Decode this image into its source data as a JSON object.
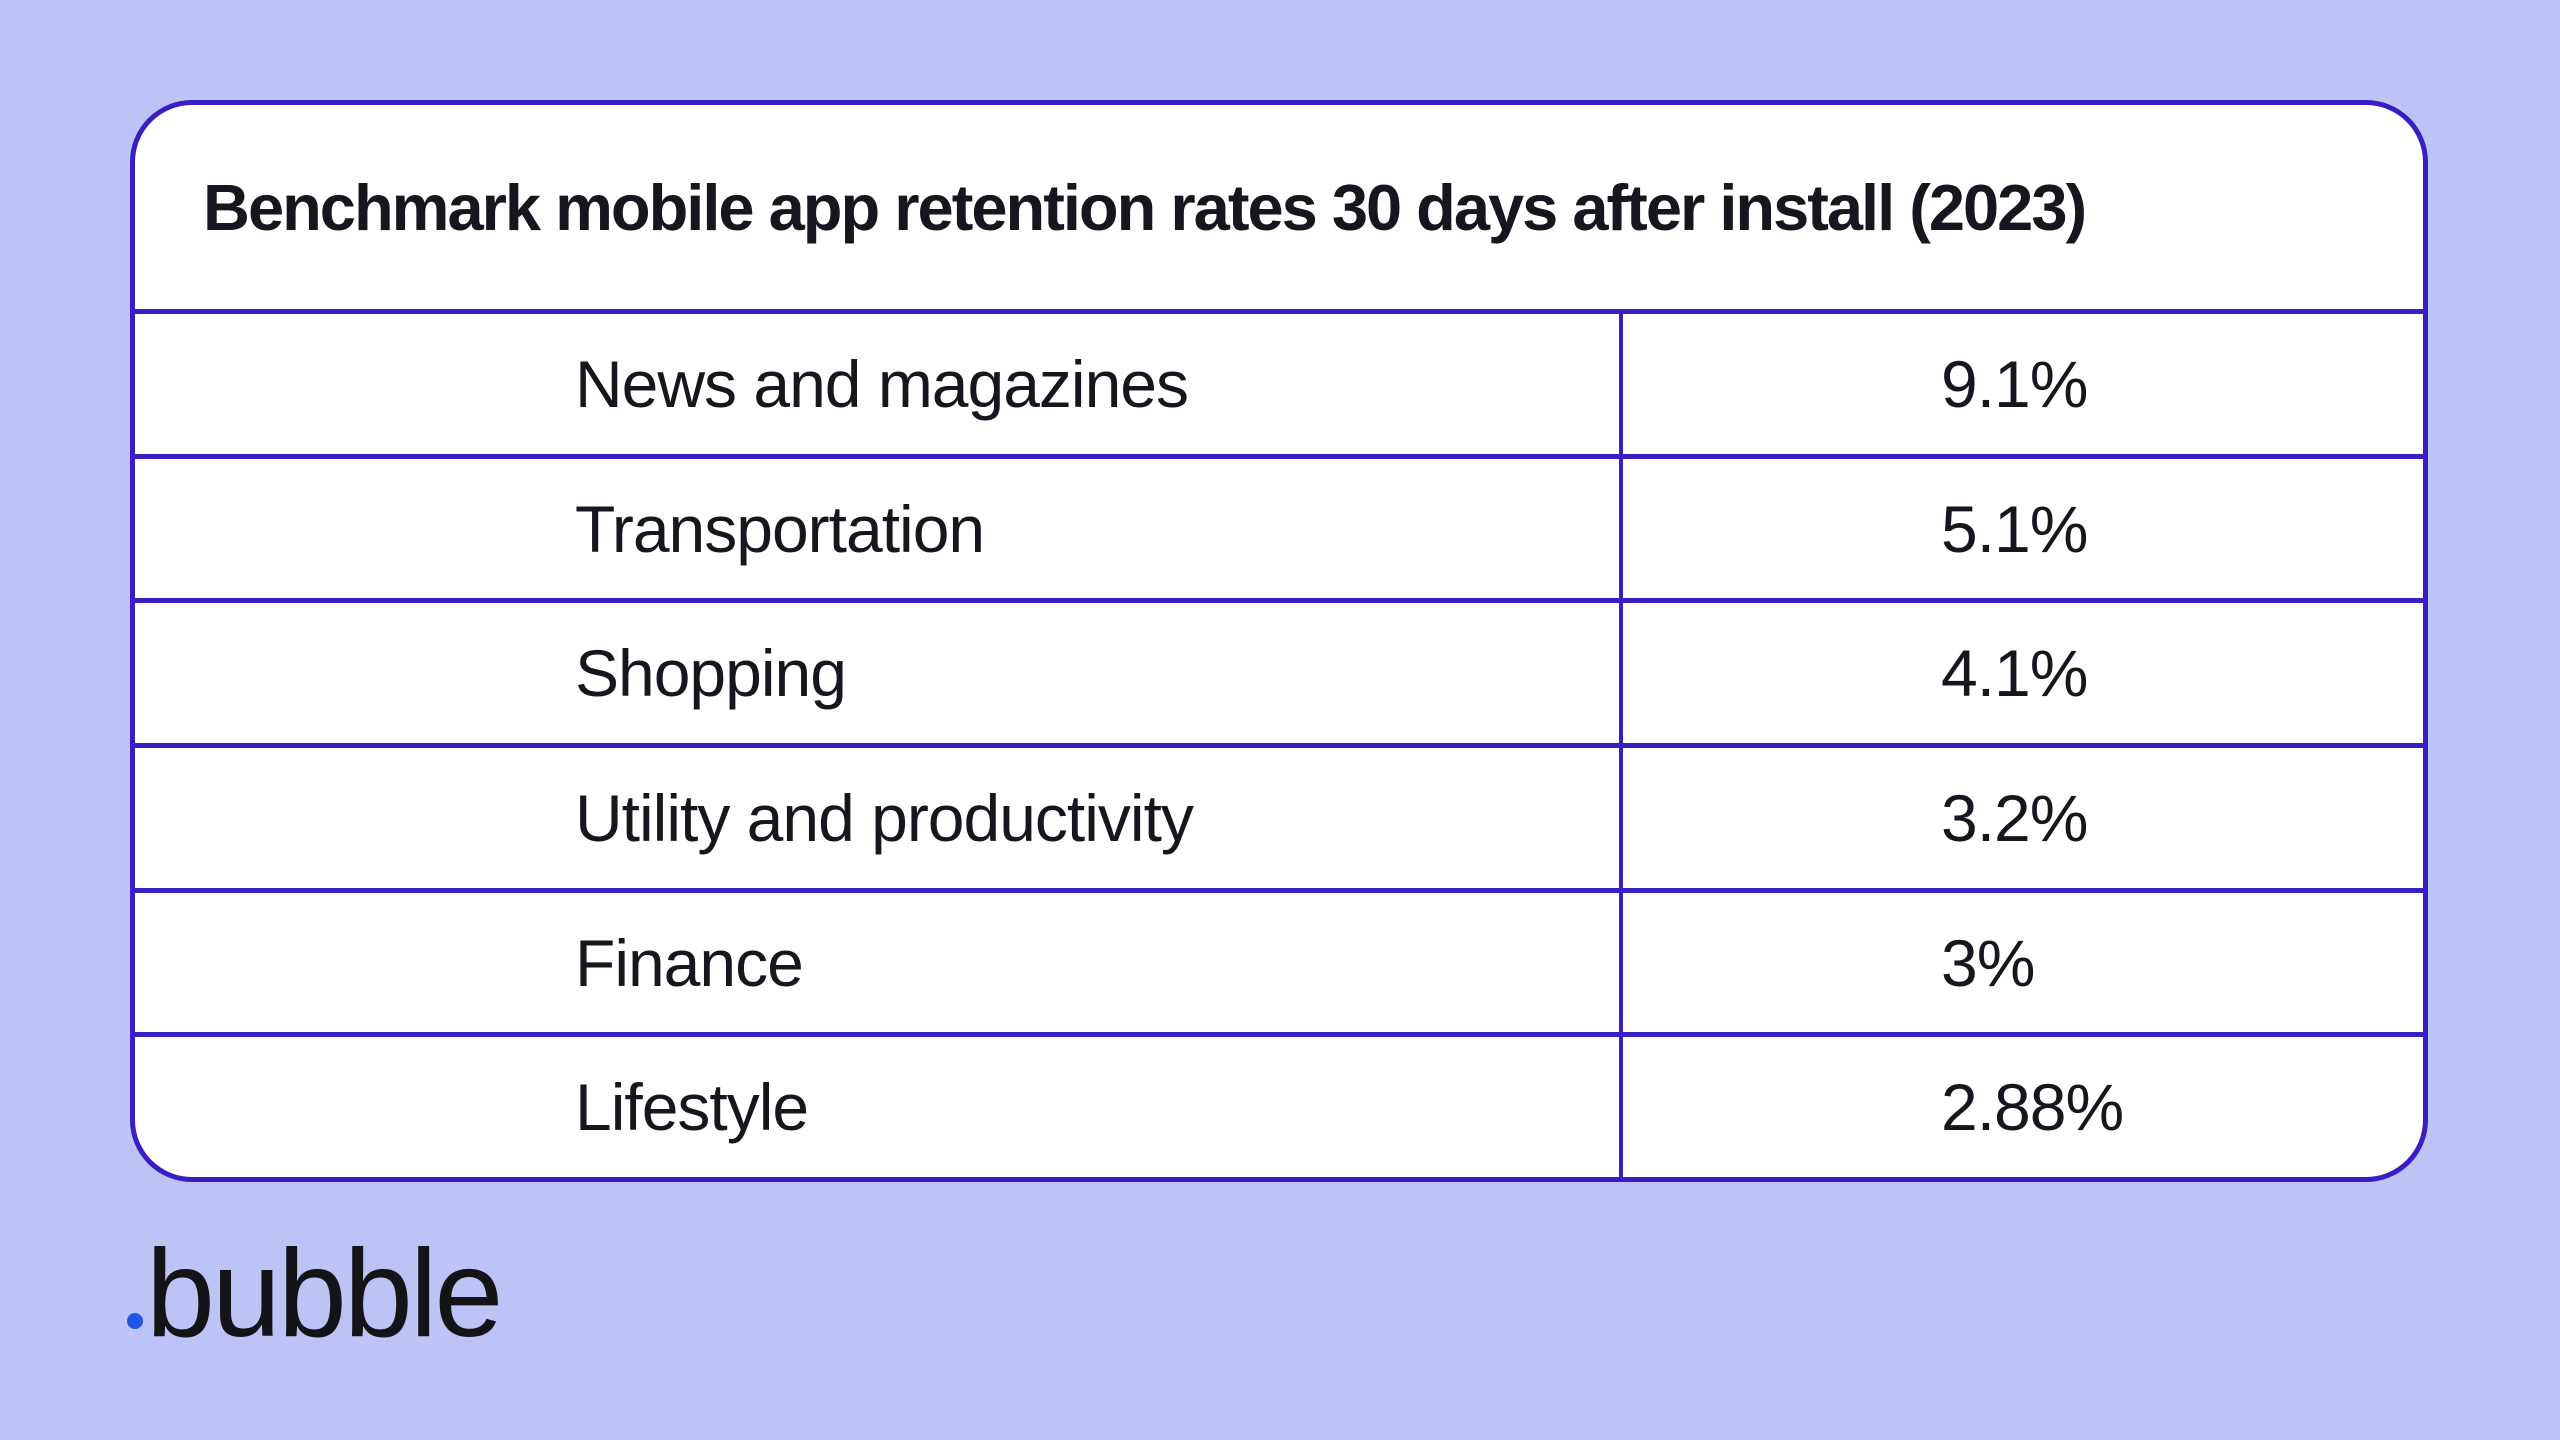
{
  "colors": {
    "page_background": "#bdc3f4",
    "card_background": "#ffffff",
    "line_color": "#3b1dc4",
    "text_color": "#17151d",
    "logo_text_color": "#141318",
    "logo_dot_color": "#2256e8"
  },
  "card": {
    "title": "Benchmark mobile app retention rates 30 days after install (2023)",
    "rows": [
      {
        "category": "News and magazines",
        "value": "9.1%"
      },
      {
        "category": "Transportation",
        "value": "5.1%"
      },
      {
        "category": "Shopping",
        "value": "4.1%"
      },
      {
        "category": "Utility and productivity",
        "value": "3.2%"
      },
      {
        "category": "Finance",
        "value": "3%"
      },
      {
        "category": "Lifestyle",
        "value": "2.88%"
      }
    ]
  },
  "logo": {
    "text": "bubble",
    "dot": "dot-icon"
  },
  "chart_data": {
    "type": "table",
    "title": "Benchmark mobile app retention rates 30 days after install (2023)",
    "categories": [
      "News and magazines",
      "Transportation",
      "Shopping",
      "Utility and productivity",
      "Finance",
      "Lifestyle"
    ],
    "values": [
      9.1,
      5.1,
      4.1,
      3.2,
      3,
      2.88
    ],
    "value_labels": [
      "9.1%",
      "5.1%",
      "4.1%",
      "3.2%",
      "3%",
      "2.88%"
    ],
    "unit": "percent",
    "layout": "two-column table, category left-aligned, value column separated by vertical rule, grid lines on"
  }
}
